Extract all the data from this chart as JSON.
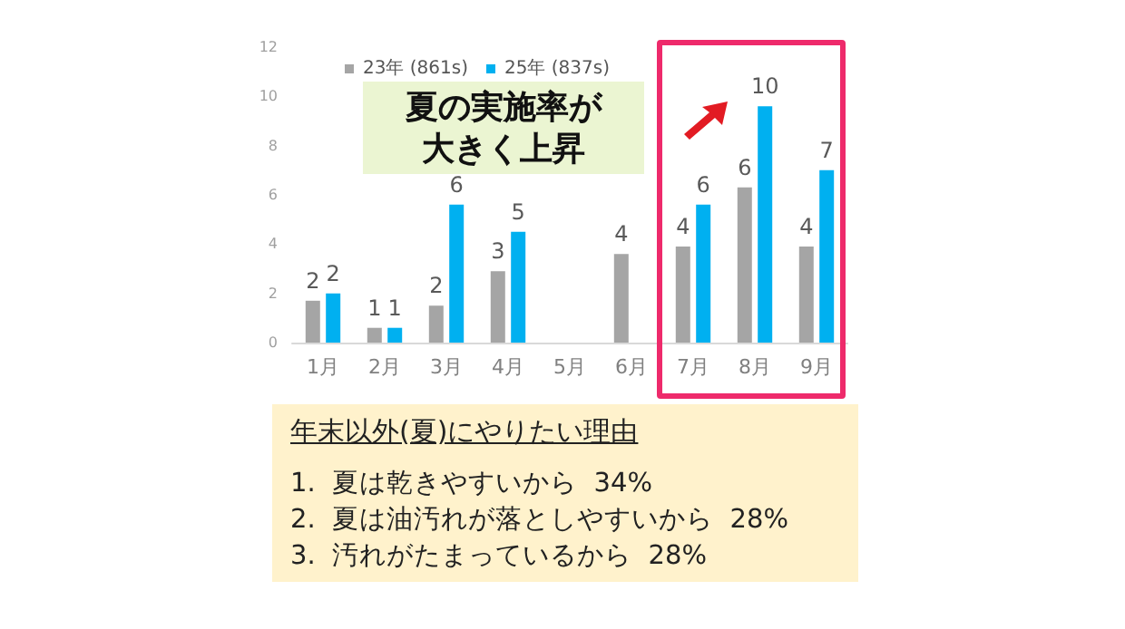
{
  "chart_data": {
    "type": "bar",
    "categories": [
      "1月",
      "2月",
      "3月",
      "4月",
      "5月",
      "6月",
      "7月",
      "8月",
      "9月"
    ],
    "series": [
      {
        "name": "23年 (861s)",
        "color": "#a5a5a5",
        "values": [
          1.7,
          0.6,
          1.5,
          2.9,
          null,
          3.6,
          3.9,
          6.3,
          3.9
        ],
        "value_labels": [
          "2",
          "1",
          "2",
          "3",
          null,
          "4",
          "4",
          "6",
          "4"
        ]
      },
      {
        "name": "25年 (837s)",
        "color": "#00b0f0",
        "values": [
          2.0,
          0.6,
          5.6,
          4.5,
          null,
          null,
          5.6,
          9.6,
          7.0
        ],
        "value_labels": [
          "2",
          "1",
          "6",
          "5",
          null,
          null,
          "6",
          "10",
          "7"
        ]
      }
    ],
    "ylim": [
      0,
      12
    ],
    "yticks": [
      0,
      2,
      4,
      6,
      8,
      10,
      12
    ],
    "grid": false,
    "legend": "top left",
    "annotations": [
      "夏の実施率が大きく上昇",
      "年末以外(夏)にやりたい理由",
      "1.  夏は乾きやすいから  34%",
      "2.  夏は油汚れが落としやすいから  28%",
      "3.  汚れがたまっているから  28%"
    ]
  }
}
